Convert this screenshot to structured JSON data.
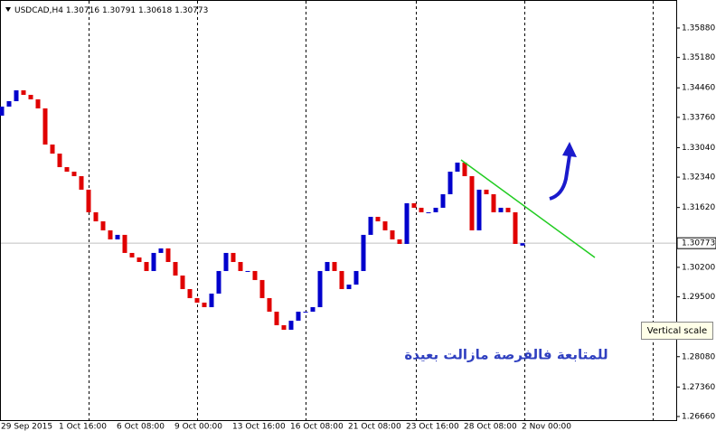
{
  "chart_data": {
    "type": "candlestick",
    "title": "USDCAD,H4",
    "last_bar": {
      "open": 1.30716,
      "high": 1.30791,
      "low": 1.30618,
      "close": 1.30773
    },
    "categories": [
      "29 Sep 2015",
      null,
      null,
      null,
      null,
      null,
      null,
      null,
      "1 Oct 16:00",
      null,
      null,
      null,
      null,
      null,
      null,
      null,
      "6 Oct 08:00",
      null,
      null,
      null,
      null,
      null,
      null,
      null,
      "9 Oct 00:00",
      null,
      null,
      null,
      null,
      null,
      null,
      null,
      "13 Oct 16:00",
      null,
      null,
      null,
      null,
      null,
      null,
      null,
      "16 Oct 08:00",
      null,
      null,
      null,
      null,
      null,
      null,
      null,
      "21 Oct 08:00",
      null,
      null,
      null,
      null,
      null,
      null,
      null,
      "23 Oct 16:00",
      null,
      null,
      null,
      null,
      null,
      null,
      null,
      "28 Oct 08:00",
      null,
      null,
      null,
      null,
      null,
      null,
      null,
      "2 Nov 00:00"
    ],
    "open": [
      1.338,
      1.34015,
      1.34144,
      1.34401,
      1.34294,
      1.34187,
      1.33972,
      1.33115,
      1.329,
      1.32579,
      1.32471,
      1.32364,
      1.32043,
      1.31507,
      1.31292,
      1.31078,
      1.30863,
      1.30971,
      1.30542,
      1.30435,
      1.30327,
      1.30113,
      1.30542,
      1.30649,
      1.30327,
      1.30006,
      1.29684,
      1.2947,
      1.29363,
      1.29255,
      1.29577,
      1.30113,
      1.30542,
      1.30327,
      1.30113,
      1.30113,
      1.29899,
      1.2947,
      1.29148,
      1.28827,
      1.28719,
      1.28934,
      1.29148,
      1.29148,
      1.29255,
      1.30113,
      1.30327,
      1.30113,
      1.29684,
      1.29791,
      1.30113,
      1.30971,
      1.31399,
      1.31292,
      1.31078,
      1.30863,
      1.30756,
      1.31721,
      1.31614,
      1.31507,
      1.31507,
      1.31614,
      1.31935,
      1.32471,
      1.32686,
      1.32364,
      1.31078,
      1.32043,
      1.31935,
      1.31507,
      1.31614,
      1.31507,
      1.30716
    ],
    "close": [
      1.34015,
      1.34144,
      1.34401,
      1.34294,
      1.34187,
      1.33972,
      1.33115,
      1.329,
      1.32579,
      1.32471,
      1.32364,
      1.32043,
      1.31507,
      1.31292,
      1.31078,
      1.30863,
      1.30971,
      1.30542,
      1.30435,
      1.30327,
      1.30113,
      1.30542,
      1.30649,
      1.30327,
      1.30006,
      1.29684,
      1.2947,
      1.29363,
      1.29255,
      1.29577,
      1.30113,
      1.30542,
      1.30327,
      1.30113,
      1.30113,
      1.29899,
      1.2947,
      1.29148,
      1.28827,
      1.28719,
      1.28934,
      1.29148,
      1.29148,
      1.29255,
      1.30113,
      1.30327,
      1.30113,
      1.29684,
      1.29791,
      1.30113,
      1.30971,
      1.31399,
      1.31292,
      1.31078,
      1.30863,
      1.30756,
      1.31721,
      1.31614,
      1.31507,
      1.31507,
      1.31614,
      1.31935,
      1.32471,
      1.32686,
      1.32364,
      1.31078,
      1.32043,
      1.31935,
      1.31507,
      1.31614,
      1.31507,
      1.30756,
      1.30773
    ],
    "up_color": "#0000cc",
    "down_color": "#e00000",
    "ylim": [
      1.26574,
      1.36545
    ],
    "yticks": [
      {
        "value": 1.3588,
        "label": "1.35880"
      },
      {
        "value": 1.3518,
        "label": "1.35180"
      },
      {
        "value": 1.3446,
        "label": "1.34460"
      },
      {
        "value": 1.3376,
        "label": "1.33760"
      },
      {
        "value": 1.3304,
        "label": "1.33040"
      },
      {
        "value": 1.3234,
        "label": "1.32340"
      },
      {
        "value": 1.3162,
        "label": "1.31620"
      },
      {
        "value": 1.302,
        "label": "1.30200"
      },
      {
        "value": 1.295,
        "label": "1.29500"
      },
      {
        "value": 1.2808,
        "label": "1.28080"
      },
      {
        "value": 1.2736,
        "label": "1.27360"
      },
      {
        "value": 1.2666,
        "label": "1.26660"
      }
    ],
    "annotation": "للمتابعة فالفرصة مازالت بعيدة",
    "tooltip": "Vertical scale"
  }
}
